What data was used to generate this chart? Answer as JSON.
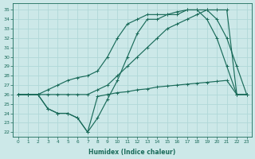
{
  "xlabel": "Humidex (Indice chaleur)",
  "xlim": [
    -0.5,
    23.5
  ],
  "ylim": [
    21.5,
    35.7
  ],
  "yticks": [
    22,
    23,
    24,
    25,
    26,
    27,
    28,
    29,
    30,
    31,
    32,
    33,
    34,
    35
  ],
  "xticks": [
    0,
    1,
    2,
    3,
    4,
    5,
    6,
    7,
    8,
    9,
    10,
    11,
    12,
    13,
    14,
    15,
    16,
    17,
    18,
    19,
    20,
    21,
    22,
    23
  ],
  "bg_color": "#cce8e8",
  "grid_color": "#b0d8d8",
  "line_color": "#1a6b5a",
  "line1_x": [
    0,
    1,
    2,
    3,
    4,
    5,
    6,
    7,
    8,
    9,
    10,
    11,
    12,
    13,
    14,
    15,
    16,
    17,
    18,
    19,
    20,
    21,
    22,
    23
  ],
  "line1_y": [
    26.0,
    26.0,
    26.0,
    26.0,
    26.0,
    26.0,
    26.0,
    26.0,
    26.5,
    27.0,
    28.0,
    29.0,
    30.0,
    31.0,
    32.0,
    33.0,
    33.5,
    34.0,
    34.5,
    35.0,
    35.0,
    35.0,
    26.0,
    26.0
  ],
  "line2_x": [
    0,
    1,
    2,
    3,
    4,
    5,
    6,
    7,
    8,
    9,
    10,
    11,
    12,
    13,
    14,
    15,
    16,
    17,
    18,
    19,
    20,
    21,
    22,
    23
  ],
  "line2_y": [
    26.0,
    26.0,
    26.0,
    26.5,
    27.0,
    27.5,
    27.8,
    28.0,
    28.5,
    30.0,
    32.0,
    33.5,
    34.0,
    34.5,
    34.5,
    34.5,
    34.8,
    35.0,
    35.0,
    34.0,
    32.0,
    29.0,
    26.0,
    26.0
  ],
  "line3_x": [
    0,
    1,
    2,
    3,
    4,
    5,
    6,
    7,
    8,
    9,
    10,
    11,
    12,
    13,
    14,
    15,
    16,
    17,
    18,
    19,
    20,
    21,
    22,
    23
  ],
  "line3_y": [
    26.0,
    26.0,
    26.0,
    24.5,
    24.0,
    24.0,
    23.5,
    22.0,
    25.8,
    26.0,
    26.2,
    26.3,
    26.5,
    26.6,
    26.8,
    26.9,
    27.0,
    27.1,
    27.2,
    27.3,
    27.4,
    27.5,
    26.0,
    26.0
  ],
  "line4_x": [
    0,
    1,
    2,
    3,
    4,
    5,
    6,
    7,
    8,
    9,
    10,
    11,
    12,
    13,
    14,
    15,
    16,
    17,
    18,
    19,
    20,
    21,
    22,
    23
  ],
  "line4_y": [
    26.0,
    26.0,
    26.0,
    24.5,
    24.0,
    24.0,
    23.5,
    22.0,
    23.5,
    25.5,
    27.5,
    30.0,
    32.5,
    34.0,
    34.0,
    34.5,
    34.5,
    35.0,
    35.0,
    35.0,
    34.0,
    32.0,
    29.0,
    26.0
  ]
}
